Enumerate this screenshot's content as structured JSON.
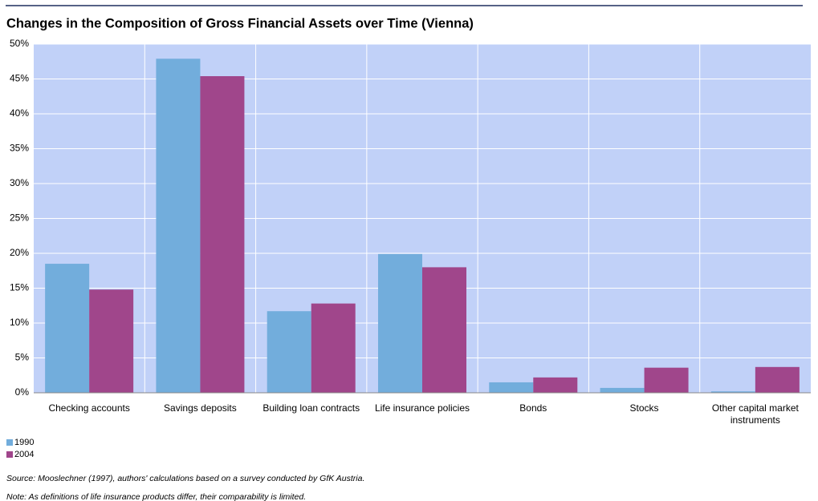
{
  "chart_data": {
    "type": "bar",
    "title": "Changes in the Composition of Gross Financial Assets over Time (Vienna)",
    "categories": [
      "Checking accounts",
      "Savings deposits",
      "Building loan contracts",
      "Life insurance policies",
      "Bonds",
      "Stocks",
      "Other capital market instruments"
    ],
    "series": [
      {
        "name": "1990",
        "color": "#72addc",
        "values": [
          18.5,
          47.9,
          11.7,
          19.9,
          1.5,
          0.7,
          0.2
        ]
      },
      {
        "name": "2004",
        "color": "#a0468b",
        "values": [
          14.8,
          45.4,
          12.8,
          18.0,
          2.2,
          3.6,
          3.7
        ]
      }
    ],
    "ylim": [
      0,
      50
    ],
    "yticks": [
      {
        "value": 0,
        "label": "0%"
      },
      {
        "value": 5,
        "label": "5%"
      },
      {
        "value": 10,
        "label": "10%"
      },
      {
        "value": 15,
        "label": "15%"
      },
      {
        "value": 20,
        "label": "20%"
      },
      {
        "value": 25,
        "label": "25%"
      },
      {
        "value": 30,
        "label": "30%"
      },
      {
        "value": 35,
        "label": "35%"
      },
      {
        "value": 40,
        "label": "40%"
      },
      {
        "value": 45,
        "label": "45%"
      },
      {
        "value": 50,
        "label": "50%"
      }
    ],
    "grid": true,
    "legend": "bottom-left",
    "source": "Source: Mooslechner (1997), authors' calculations based on a survey conducted by GfK Austria.",
    "note": "Note: As definitions of life insurance products differ, their comparability is limited."
  }
}
